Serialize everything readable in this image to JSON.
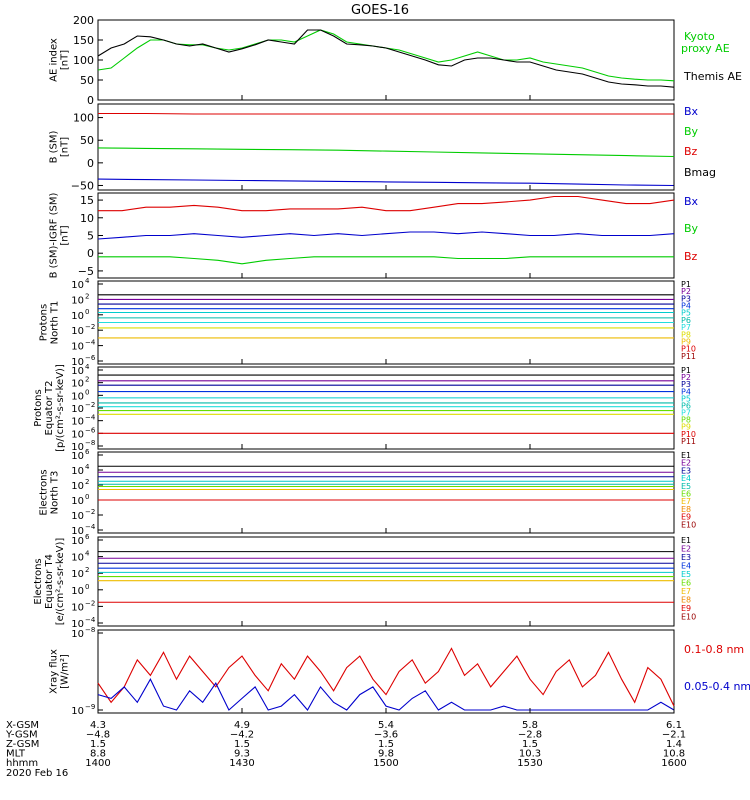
{
  "title": "GOES-16",
  "colors": {
    "black": "#000000",
    "red": "#dd0000",
    "green": "#00cc00",
    "blue": "#0000cc",
    "navy": "#000099",
    "royal": "#0033dd",
    "cyan": "#00cccc",
    "teal": "#00bbaa",
    "aqua": "#22dddd",
    "lime": "#66dd00",
    "yellow": "#dddd00",
    "gold": "#eebb00",
    "orange": "#ee8800",
    "purple": "#770099",
    "darkred": "#990000"
  },
  "chart_data": [
    {
      "type": "line",
      "ylabel": [
        "AE index",
        "[nT]"
      ],
      "ylim": [
        0,
        200
      ],
      "yticks": [
        "0",
        "50",
        "100",
        "150",
        "200"
      ],
      "series": [
        {
          "name": "Kyoto proxy AE",
          "color": "#00cc00",
          "values": [
            75,
            80,
            105,
            130,
            150,
            150,
            140,
            138,
            138,
            130,
            125,
            130,
            140,
            150,
            150,
            145,
            160,
            175,
            165,
            145,
            140,
            135,
            130,
            125,
            115,
            105,
            95,
            100,
            110,
            120,
            110,
            100,
            100,
            105,
            95,
            90,
            85,
            80,
            70,
            60,
            55,
            52,
            50,
            50,
            48
          ]
        },
        {
          "name": "Themis AE",
          "color": "#000000",
          "values": [
            110,
            130,
            140,
            160,
            158,
            150,
            140,
            135,
            140,
            130,
            120,
            128,
            138,
            150,
            145,
            140,
            175,
            175,
            160,
            140,
            138,
            135,
            130,
            120,
            110,
            100,
            88,
            85,
            100,
            105,
            105,
            100,
            95,
            95,
            85,
            75,
            70,
            65,
            55,
            45,
            40,
            38,
            35,
            35,
            32
          ]
        }
      ]
    },
    {
      "type": "line",
      "ylabel": [
        "B (SM)",
        "[nT]"
      ],
      "ylim": [
        -60,
        130
      ],
      "yticks": [
        "-50",
        "0",
        "50",
        "100"
      ],
      "series": [
        {
          "name": "Bx",
          "color": "#0000cc",
          "values": [
            -36,
            -37,
            -38,
            -39,
            -40,
            -41,
            -42,
            -43,
            -44,
            -45,
            -47,
            -49,
            -50
          ]
        },
        {
          "name": "By",
          "color": "#00cc00",
          "values": [
            33,
            32,
            31,
            30,
            29,
            28,
            26,
            24,
            22,
            20,
            18,
            16,
            14
          ]
        },
        {
          "name": "Bz",
          "color": "#dd0000",
          "values": [
            109,
            109,
            108,
            108,
            108,
            108,
            108,
            108,
            108,
            108,
            108,
            108,
            108
          ]
        },
        {
          "name": "Bmag",
          "color": "#000000",
          "values": []
        }
      ]
    },
    {
      "type": "line",
      "ylabel": [
        "B (SM)-IGRF (SM)",
        "[nT]"
      ],
      "ylim": [
        -7,
        17
      ],
      "yticks": [
        "-5",
        "0",
        "5",
        "10",
        "15"
      ],
      "series": [
        {
          "name": "Bx",
          "color": "#0000cc",
          "values": [
            4,
            4.5,
            5,
            5,
            5.5,
            5,
            4.5,
            5,
            5.5,
            5,
            5.5,
            5,
            5.5,
            6,
            6,
            5.5,
            6,
            5.5,
            5,
            5,
            5.5,
            5,
            5,
            5,
            5.5
          ]
        },
        {
          "name": "By",
          "color": "#00cc00",
          "values": [
            -1,
            -1,
            -1,
            -1,
            -1.5,
            -2,
            -3,
            -2,
            -1.5,
            -1,
            -1,
            -1,
            -1,
            -1,
            -1,
            -1.5,
            -1.5,
            -1.5,
            -1,
            -1,
            -1,
            -1,
            -1,
            -1,
            -1
          ]
        },
        {
          "name": "Bz",
          "color": "#dd0000",
          "values": [
            12,
            12,
            13,
            13,
            13.5,
            13,
            12,
            12,
            12.5,
            12.5,
            12.5,
            13,
            12,
            12,
            13,
            14,
            14,
            14.5,
            15,
            16,
            16,
            15,
            14,
            14,
            15
          ]
        }
      ]
    },
    {
      "type": "line",
      "ylabel": [
        "Protons",
        "North T1"
      ],
      "ylog": true,
      "ytick_exps": [
        "4",
        "2",
        "0",
        "-2",
        "-4",
        "-6"
      ],
      "series": [
        {
          "name": "P1",
          "color": "#000000",
          "values": [
            2.6
          ]
        },
        {
          "name": "P2",
          "color": "#770099",
          "values": [
            2.0
          ]
        },
        {
          "name": "P3",
          "color": "#000099",
          "values": [
            1.4
          ]
        },
        {
          "name": "P4",
          "color": "#0033dd",
          "values": [
            0.8
          ]
        },
        {
          "name": "P5",
          "color": "#00cccc",
          "values": [
            0.3
          ]
        },
        {
          "name": "P6",
          "color": "#00bbaa",
          "values": [
            -0.4
          ]
        },
        {
          "name": "P7",
          "color": "#22dddd",
          "values": [
            -1.0
          ]
        },
        {
          "name": "P8",
          "color": "#dddd00",
          "values": [
            -1.7
          ]
        },
        {
          "name": "P9",
          "color": "#eebb00",
          "values": [
            -3.0
          ]
        },
        {
          "name": "P10",
          "color": "#dd0000",
          "values": []
        },
        {
          "name": "P11",
          "color": "#990000",
          "values": []
        }
      ]
    },
    {
      "type": "line",
      "ylabel": [
        "Protons",
        "Equator T2",
        "[p/(cm²-s-sr-keV)]"
      ],
      "ylog": true,
      "ytick_exps": [
        "4",
        "2",
        "0",
        "-2",
        "-4",
        "-6",
        "-8"
      ],
      "series": [
        {
          "name": "P1",
          "color": "#000000",
          "values": [
            3.2
          ]
        },
        {
          "name": "P2",
          "color": "#770099",
          "values": [
            2.3
          ]
        },
        {
          "name": "P3",
          "color": "#000099",
          "values": [
            1.6
          ]
        },
        {
          "name": "P4",
          "color": "#0033dd",
          "values": [
            0.6
          ]
        },
        {
          "name": "P5",
          "color": "#00cccc",
          "values": [
            -0.4
          ]
        },
        {
          "name": "P6",
          "color": "#00bbaa",
          "values": [
            -1.2
          ]
        },
        {
          "name": "P7",
          "color": "#22dddd",
          "values": [
            -1.8
          ]
        },
        {
          "name": "P8",
          "color": "#66dd00",
          "values": [
            -2.4
          ]
        },
        {
          "name": "P9",
          "color": "#dddd00",
          "values": [
            -3.0
          ]
        },
        {
          "name": "P10",
          "color": "#dd0000",
          "values": [
            -6.0
          ]
        },
        {
          "name": "P11",
          "color": "#990000",
          "values": []
        }
      ]
    },
    {
      "type": "line",
      "ylabel": [
        "Electrons",
        "North T3"
      ],
      "ylog": true,
      "ytick_exps": [
        "6",
        "4",
        "2",
        "0",
        "-2",
        "-4"
      ],
      "series": [
        {
          "name": "E1",
          "color": "#000000",
          "values": [
            4.5
          ]
        },
        {
          "name": "E2",
          "color": "#770099",
          "values": [
            3.7
          ]
        },
        {
          "name": "E3",
          "color": "#000099",
          "values": [
            3.1
          ]
        },
        {
          "name": "E4",
          "color": "#00cccc",
          "values": [
            2.5
          ]
        },
        {
          "name": "E5",
          "color": "#00bbaa",
          "values": [
            2.1
          ]
        },
        {
          "name": "E6",
          "color": "#66dd00",
          "values": [
            1.8
          ]
        },
        {
          "name": "E7",
          "color": "#eebb00",
          "values": [
            1.4
          ]
        },
        {
          "name": "E8",
          "color": "#ee8800",
          "values": []
        },
        {
          "name": "E9",
          "color": "#dd0000",
          "values": [
            0
          ]
        },
        {
          "name": "E10",
          "color": "#990000",
          "values": []
        }
      ]
    },
    {
      "type": "line",
      "ylabel": [
        "Electrons",
        "Equator T4",
        "[e/(cm²-s-sr-keV)]"
      ],
      "ylog": true,
      "ytick_exps": [
        "6",
        "4",
        "2",
        "0",
        "-2",
        "-4"
      ],
      "series": [
        {
          "name": "E1",
          "color": "#000000",
          "values": [
            4.6
          ]
        },
        {
          "name": "E2",
          "color": "#770099",
          "values": [
            3.8
          ]
        },
        {
          "name": "E3",
          "color": "#000099",
          "values": [
            3.2
          ]
        },
        {
          "name": "E4",
          "color": "#0033dd",
          "values": [
            2.6
          ]
        },
        {
          "name": "E5",
          "color": "#00cccc",
          "values": [
            2.1
          ]
        },
        {
          "name": "E6",
          "color": "#66dd00",
          "values": [
            1.6
          ]
        },
        {
          "name": "E7",
          "color": "#eebb00",
          "values": [
            1.1
          ]
        },
        {
          "name": "E8",
          "color": "#ee8800",
          "values": []
        },
        {
          "name": "E9",
          "color": "#dd0000",
          "values": [
            -1.5
          ]
        },
        {
          "name": "E10",
          "color": "#990000",
          "values": []
        }
      ]
    },
    {
      "type": "line",
      "ylabel": [
        "Xray flux",
        "[W/m²]"
      ],
      "ylog": true,
      "ytick_exps": [
        "-8",
        "-9"
      ],
      "series": [
        {
          "name": "0.1-0.8 nm",
          "color": "#dd0000",
          "values": [
            -8.65,
            -8.9,
            -8.7,
            -8.35,
            -8.55,
            -8.25,
            -8.6,
            -8.3,
            -8.5,
            -8.7,
            -8.45,
            -8.3,
            -8.55,
            -8.75,
            -8.4,
            -8.6,
            -8.3,
            -8.5,
            -8.75,
            -8.45,
            -8.3,
            -8.6,
            -8.8,
            -8.5,
            -8.35,
            -8.65,
            -8.5,
            -8.2,
            -8.55,
            -8.4,
            -8.7,
            -8.5,
            -8.3,
            -8.6,
            -8.8,
            -8.5,
            -8.35,
            -8.7,
            -8.55,
            -8.25,
            -8.6,
            -8.9,
            -8.45,
            -8.6,
            -8.95
          ]
        },
        {
          "name": "0.05-0.4 nm",
          "color": "#0000cc",
          "values": [
            -8.8,
            -8.85,
            -8.7,
            -8.9,
            -8.6,
            -8.95,
            -9,
            -8.75,
            -8.9,
            -8.65,
            -9,
            -8.85,
            -8.7,
            -9,
            -8.95,
            -8.8,
            -9,
            -8.7,
            -8.9,
            -9,
            -8.8,
            -8.7,
            -8.95,
            -9,
            -8.85,
            -8.75,
            -9,
            -8.9,
            -9,
            -9,
            -9,
            -8.95,
            -9,
            -9,
            -9,
            -9,
            -9,
            -9,
            -9,
            -9,
            -9,
            -9,
            -9,
            -8.9,
            -9
          ]
        }
      ]
    }
  ],
  "footer": {
    "row_labels": [
      "X-GSM",
      "Y-GSM",
      "Z-GSM",
      "MLT",
      "hhmm"
    ],
    "columns": [
      [
        "4.3",
        "-4.8",
        "1.5",
        "8.8",
        "1400"
      ],
      [
        "4.9",
        "-4.2",
        "1.5",
        "9.3",
        "1430"
      ],
      [
        "5.4",
        "-3.6",
        "1.5",
        "9.8",
        "1500"
      ],
      [
        "5.8",
        "-2.8",
        "1.5",
        "10.3",
        "1530"
      ],
      [
        "6.1",
        "-2.1",
        "1.4",
        "10.8",
        "1600"
      ]
    ],
    "date": "2020 Feb 16"
  }
}
